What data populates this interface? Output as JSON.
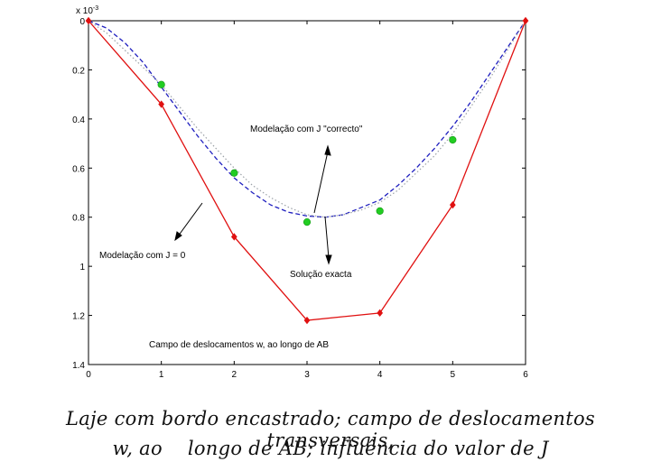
{
  "chart_data": {
    "type": "line",
    "multiplier_label": "x 10",
    "multiplier_exponent": "-3",
    "x_ticks": [
      0,
      1,
      2,
      3,
      4,
      5,
      6
    ],
    "y_ticks": [
      0,
      0.2,
      0.4,
      0.6,
      0.8,
      1,
      1.2,
      1.4
    ],
    "xlim": [
      0,
      6
    ],
    "ylim": [
      0,
      1.4
    ],
    "y_reversed": true,
    "grid": false,
    "series": [
      {
        "style": "dashed",
        "color": "#1f1fbf",
        "x": [
          0,
          0.25,
          0.5,
          0.75,
          1,
          1.25,
          1.5,
          1.75,
          2,
          2.25,
          2.5,
          2.75,
          3,
          3.25,
          3.5,
          3.75,
          4,
          4.25,
          4.5,
          4.75,
          5,
          5.25,
          5.5,
          5.75,
          6
        ],
        "y": [
          0,
          0.03,
          0.09,
          0.17,
          0.27,
          0.37,
          0.47,
          0.56,
          0.64,
          0.7,
          0.75,
          0.78,
          0.795,
          0.8,
          0.79,
          0.76,
          0.73,
          0.67,
          0.6,
          0.52,
          0.43,
          0.33,
          0.22,
          0.11,
          0
        ]
      },
      {
        "style": "dotted",
        "color": "#9aa0a6",
        "x": [
          0,
          0.25,
          0.5,
          0.75,
          1,
          1.25,
          1.5,
          1.75,
          2,
          2.25,
          2.5,
          2.75,
          3,
          3.25,
          3.5,
          3.75,
          4,
          4.25,
          4.5,
          4.75,
          5,
          5.25,
          5.5,
          5.75,
          6
        ],
        "y": [
          0,
          0.05,
          0.12,
          0.19,
          0.26,
          0.35,
          0.44,
          0.52,
          0.6,
          0.67,
          0.72,
          0.76,
          0.79,
          0.8,
          0.79,
          0.77,
          0.74,
          0.69,
          0.62,
          0.55,
          0.46,
          0.35,
          0.24,
          0.12,
          0
        ]
      },
      {
        "style": "markers",
        "color": "#22cc22",
        "marker": "circle",
        "x": [
          1,
          2,
          3,
          4,
          5
        ],
        "y": [
          0.26,
          0.62,
          0.82,
          0.775,
          0.485
        ]
      },
      {
        "style": "solid",
        "color": "#e01010",
        "marker": "diamond",
        "x": [
          0,
          1,
          2,
          3,
          4,
          5,
          6
        ],
        "y": [
          0,
          0.34,
          0.88,
          1.22,
          1.19,
          0.75,
          0
        ]
      }
    ],
    "annotations": [
      {
        "text": "Modelação com J \"correcto\""
      },
      {
        "text": "Modelação com J = 0"
      },
      {
        "text": "Solução exacta"
      },
      {
        "text": "Campo de deslocamentos w, ao longo de AB"
      }
    ]
  },
  "caption": {
    "line1": "Laje com bordo encastrado; campo de deslocamentos transversais,",
    "line2": "w, ao    longo de AB; influência do valor de J"
  }
}
